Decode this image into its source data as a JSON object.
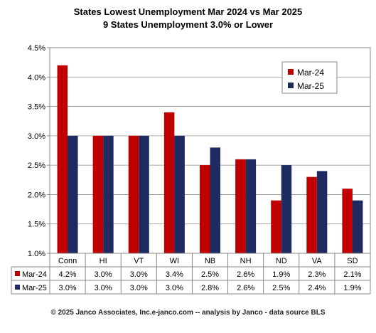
{
  "chart_data": {
    "type": "bar",
    "title": "States Lowest Unemployment Mar 2024 vs Mar 2025",
    "subtitle": "9 States  Unemployment 3.0% or Lower",
    "categories": [
      "Conn",
      "HI",
      "VT",
      "WI",
      "NB",
      "NH",
      "ND",
      "VA",
      "SD"
    ],
    "series": [
      {
        "name": "Mar-24",
        "values": [
          4.2,
          3.0,
          3.0,
          3.4,
          2.5,
          2.6,
          1.9,
          2.3,
          2.1
        ],
        "labels": [
          "4.2%",
          "3.0%",
          "3.0%",
          "3.4%",
          "2.5%",
          "2.6%",
          "1.9%",
          "2.3%",
          "2.1%"
        ],
        "color": "#c00000"
      },
      {
        "name": "Mar-25",
        "values": [
          3.0,
          3.0,
          3.0,
          3.0,
          2.8,
          2.6,
          2.5,
          2.4,
          1.9
        ],
        "labels": [
          "3.0%",
          "3.0%",
          "3.0%",
          "3.0%",
          "2.8%",
          "2.6%",
          "2.5%",
          "2.4%",
          "1.9%"
        ],
        "color": "#1f2a60"
      }
    ],
    "ylim": [
      1.0,
      4.5
    ],
    "yticks": [
      1.0,
      1.5,
      2.0,
      2.5,
      3.0,
      3.5,
      4.0,
      4.5
    ],
    "ytick_labels": [
      "1.0%",
      "1.5%",
      "2.0%",
      "2.5%",
      "3.0%",
      "3.5%",
      "4.0%",
      "4.5%"
    ],
    "grid": true,
    "legend_position": "top-right",
    "data_table": true
  },
  "footer": "© 2025 Janco Associates, Inc.e-janco.com -- analysis by Janco - data source BLS"
}
